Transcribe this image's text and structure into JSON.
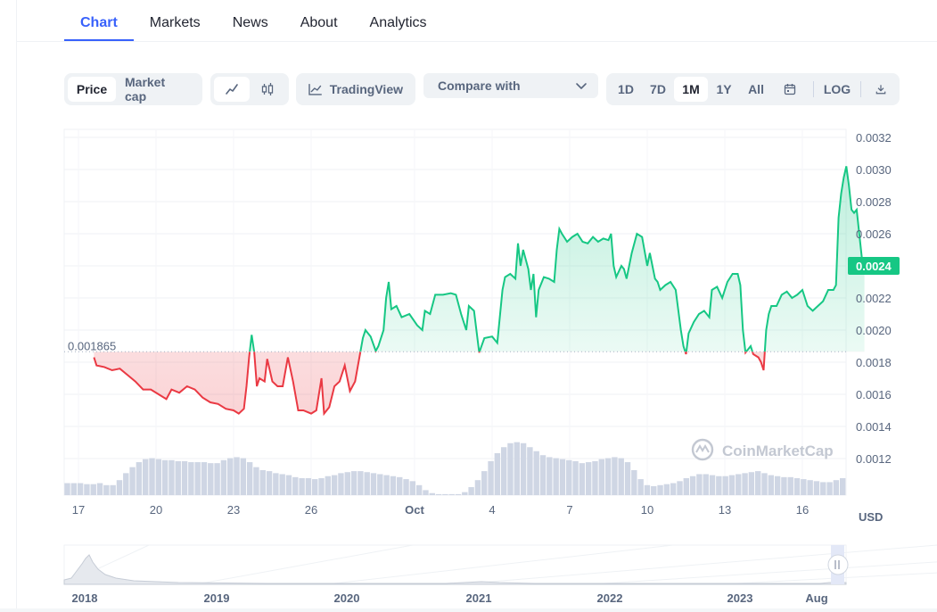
{
  "tabs": [
    {
      "label": "Chart",
      "active": true
    },
    {
      "label": "Markets"
    },
    {
      "label": "News"
    },
    {
      "label": "About"
    },
    {
      "label": "Analytics"
    }
  ],
  "toolbar": {
    "price_label": "Price",
    "market_cap_label": "Market cap",
    "line_icon": "line-chart-icon",
    "candle_icon": "candlestick-icon",
    "tradingview_label": "TradingView",
    "compare_label": "Compare with",
    "ranges": [
      "1D",
      "7D",
      "1M",
      "1Y",
      "All"
    ],
    "active_range": "1M",
    "log_label": "LOG"
  },
  "watermark": "CoinMarketCap",
  "currency": "USD",
  "colors": {
    "up": "#16c784",
    "down": "#ea3943",
    "accent": "#3861fb"
  },
  "chart_data": {
    "type": "line",
    "baseline": 0.001865,
    "baseline_label": "0.001865",
    "current_label": "0.0024",
    "ylim": [
      0.001,
      0.0032
    ],
    "y_ticks": [
      "0.0032",
      "0.0030",
      "0.0028",
      "0.0026",
      "0.0024",
      "0.0022",
      "0.0020",
      "0.0018",
      "0.0016",
      "0.0014",
      "0.0012"
    ],
    "x_ticks": [
      "17",
      "20",
      "23",
      "26",
      "Oct",
      "4",
      "7",
      "10",
      "13",
      "16"
    ],
    "xlim": [
      0,
      30
    ],
    "series": [
      {
        "values": [
          [
            1.6,
            0.00183
          ],
          [
            1.7,
            0.00178
          ],
          [
            2.0,
            0.00177
          ],
          [
            2.3,
            0.00175
          ],
          [
            2.6,
            0.00176
          ],
          [
            2.9,
            0.00172
          ],
          [
            3.2,
            0.00168
          ],
          [
            3.5,
            0.00163
          ],
          [
            3.8,
            0.00163
          ],
          [
            4.1,
            0.0016
          ],
          [
            4.4,
            0.00157
          ],
          [
            4.6,
            0.00163
          ],
          [
            4.9,
            0.00161
          ],
          [
            5.2,
            0.00165
          ],
          [
            5.5,
            0.00163
          ],
          [
            5.8,
            0.00158
          ],
          [
            6.1,
            0.00155
          ],
          [
            6.4,
            0.00154
          ],
          [
            6.7,
            0.00151
          ],
          [
            7.0,
            0.0015
          ],
          [
            7.2,
            0.00148
          ],
          [
            7.4,
            0.00151
          ],
          [
            7.5,
            0.00165
          ],
          [
            7.6,
            0.00183
          ],
          [
            7.7,
            0.00197
          ],
          [
            7.8,
            0.00186
          ],
          [
            7.9,
            0.00165
          ],
          [
            8.0,
            0.0017
          ],
          [
            8.2,
            0.00168
          ],
          [
            8.3,
            0.00182
          ],
          [
            8.5,
            0.00168
          ],
          [
            8.7,
            0.00165
          ],
          [
            8.9,
            0.00165
          ],
          [
            9.1,
            0.00183
          ],
          [
            9.3,
            0.00168
          ],
          [
            9.5,
            0.0015
          ],
          [
            9.7,
            0.0015
          ],
          [
            10.0,
            0.00148
          ],
          [
            10.2,
            0.0015
          ],
          [
            10.4,
            0.0017
          ],
          [
            10.5,
            0.00148
          ],
          [
            10.7,
            0.00152
          ],
          [
            10.9,
            0.00165
          ],
          [
            11.1,
            0.00168
          ],
          [
            11.3,
            0.00178
          ],
          [
            11.5,
            0.00162
          ],
          [
            11.7,
            0.00168
          ],
          [
            11.9,
            0.00186
          ],
          [
            12.0,
            0.00195
          ],
          [
            12.1,
            0.002
          ],
          [
            12.3,
            0.00196
          ],
          [
            12.5,
            0.00187
          ],
          [
            12.6,
            0.0019
          ],
          [
            12.8,
            0.002
          ],
          [
            12.9,
            0.0022
          ],
          [
            13.0,
            0.0023
          ],
          [
            13.1,
            0.00213
          ],
          [
            13.3,
            0.00215
          ],
          [
            13.5,
            0.00208
          ],
          [
            13.8,
            0.0021
          ],
          [
            14.1,
            0.00203
          ],
          [
            14.3,
            0.002
          ],
          [
            14.4,
            0.00212
          ],
          [
            14.6,
            0.0021
          ],
          [
            14.8,
            0.00222
          ],
          [
            15.1,
            0.00222
          ],
          [
            15.4,
            0.00223
          ],
          [
            15.6,
            0.00222
          ],
          [
            15.8,
            0.0021
          ],
          [
            16.0,
            0.002
          ],
          [
            16.1,
            0.00215
          ],
          [
            16.3,
            0.00212
          ],
          [
            16.5,
            0.00186
          ],
          [
            16.7,
            0.00195
          ],
          [
            17.0,
            0.00196
          ],
          [
            17.2,
            0.00192
          ],
          [
            17.4,
            0.00225
          ],
          [
            17.5,
            0.00233
          ],
          [
            17.7,
            0.00235
          ],
          [
            17.9,
            0.00232
          ],
          [
            18.0,
            0.00254
          ],
          [
            18.1,
            0.0024
          ],
          [
            18.2,
            0.0025
          ],
          [
            18.4,
            0.00238
          ],
          [
            18.5,
            0.00225
          ],
          [
            18.6,
            0.00235
          ],
          [
            18.7,
            0.00208
          ],
          [
            18.8,
            0.00225
          ],
          [
            19.0,
            0.00233
          ],
          [
            19.2,
            0.00232
          ],
          [
            19.4,
            0.0023
          ],
          [
            19.5,
            0.0025
          ],
          [
            19.6,
            0.00263
          ],
          [
            19.7,
            0.0026
          ],
          [
            19.9,
            0.00255
          ],
          [
            20.1,
            0.00258
          ],
          [
            20.3,
            0.0026
          ],
          [
            20.5,
            0.00255
          ],
          [
            20.7,
            0.00254
          ],
          [
            20.9,
            0.00258
          ],
          [
            21.1,
            0.00255
          ],
          [
            21.3,
            0.00257
          ],
          [
            21.5,
            0.00256
          ],
          [
            21.6,
            0.0026
          ],
          [
            21.7,
            0.0024
          ],
          [
            21.8,
            0.00233
          ],
          [
            22.0,
            0.0024
          ],
          [
            22.1,
            0.00238
          ],
          [
            22.2,
            0.00232
          ],
          [
            22.4,
            0.00248
          ],
          [
            22.6,
            0.0026
          ],
          [
            22.8,
            0.00258
          ],
          [
            23.0,
            0.0024
          ],
          [
            23.1,
            0.00248
          ],
          [
            23.3,
            0.00232
          ],
          [
            23.4,
            0.0023
          ],
          [
            23.5,
            0.00225
          ],
          [
            23.7,
            0.00228
          ],
          [
            23.9,
            0.0023
          ],
          [
            24.1,
            0.00225
          ],
          [
            24.3,
            0.002
          ],
          [
            24.4,
            0.0019
          ],
          [
            24.5,
            0.00185
          ],
          [
            24.6,
            0.00198
          ],
          [
            24.8,
            0.00205
          ],
          [
            25.0,
            0.0021
          ],
          [
            25.2,
            0.00212
          ],
          [
            25.4,
            0.00208
          ],
          [
            25.5,
            0.00225
          ],
          [
            25.7,
            0.00227
          ],
          [
            25.9,
            0.0022
          ],
          [
            26.1,
            0.0023
          ],
          [
            26.3,
            0.00235
          ],
          [
            26.5,
            0.00235
          ],
          [
            26.6,
            0.00228
          ],
          [
            26.7,
            0.002
          ],
          [
            26.8,
            0.00186
          ],
          [
            27.0,
            0.0019
          ],
          [
            27.1,
            0.00185
          ],
          [
            27.3,
            0.00183
          ],
          [
            27.4,
            0.0018
          ],
          [
            27.5,
            0.00175
          ],
          [
            27.6,
            0.002
          ],
          [
            27.7,
            0.0021
          ],
          [
            27.8,
            0.00215
          ],
          [
            28.0,
            0.00215
          ],
          [
            28.2,
            0.00222
          ],
          [
            28.4,
            0.00224
          ],
          [
            28.6,
            0.0022
          ],
          [
            28.8,
            0.00222
          ],
          [
            29.0,
            0.00225
          ],
          [
            29.2,
            0.00215
          ],
          [
            29.4,
            0.00212
          ],
          [
            29.6,
            0.00215
          ],
          [
            29.8,
            0.00218
          ],
          [
            30.0,
            0.00225
          ],
          [
            30.2,
            0.00225
          ],
          [
            30.3,
            0.00228
          ],
          [
            30.4,
            0.0027
          ],
          [
            30.5,
            0.00285
          ],
          [
            30.6,
            0.00295
          ],
          [
            30.7,
            0.00302
          ],
          [
            30.8,
            0.0029
          ],
          [
            30.9,
            0.00275
          ],
          [
            31.0,
            0.00273
          ],
          [
            31.1,
            0.00275
          ],
          [
            31.2,
            0.0026
          ],
          [
            31.3,
            0.00245
          ],
          [
            31.4,
            0.0024
          ]
        ]
      }
    ],
    "volume": [
      0.12,
      0.12,
      0.12,
      0.11,
      0.11,
      0.12,
      0.1,
      0.1,
      0.15,
      0.22,
      0.28,
      0.33,
      0.36,
      0.37,
      0.36,
      0.35,
      0.35,
      0.34,
      0.34,
      0.33,
      0.33,
      0.33,
      0.32,
      0.32,
      0.35,
      0.37,
      0.38,
      0.37,
      0.33,
      0.28,
      0.25,
      0.24,
      0.22,
      0.21,
      0.2,
      0.18,
      0.17,
      0.17,
      0.16,
      0.17,
      0.19,
      0.2,
      0.22,
      0.23,
      0.24,
      0.24,
      0.23,
      0.22,
      0.21,
      0.2,
      0.19,
      0.18,
      0.16,
      0.14,
      0.1,
      0.05,
      0.02,
      0.01,
      0.01,
      0.01,
      0.01,
      0.03,
      0.08,
      0.15,
      0.24,
      0.34,
      0.42,
      0.48,
      0.52,
      0.53,
      0.52,
      0.48,
      0.44,
      0.4,
      0.38,
      0.37,
      0.36,
      0.35,
      0.34,
      0.32,
      0.33,
      0.34,
      0.36,
      0.37,
      0.38,
      0.37,
      0.33,
      0.25,
      0.16,
      0.1,
      0.09,
      0.1,
      0.11,
      0.12,
      0.14,
      0.17,
      0.19,
      0.21,
      0.21,
      0.2,
      0.19,
      0.19,
      0.2,
      0.21,
      0.22,
      0.23,
      0.24,
      0.22,
      0.2,
      0.19,
      0.18,
      0.18,
      0.17,
      0.16,
      0.15,
      0.14,
      0.13,
      0.13,
      0.15,
      0.17
    ],
    "navigator": {
      "x_ticks": [
        "2018",
        "2019",
        "2020",
        "2021",
        "2022",
        "2023",
        "Aug"
      ]
    }
  }
}
